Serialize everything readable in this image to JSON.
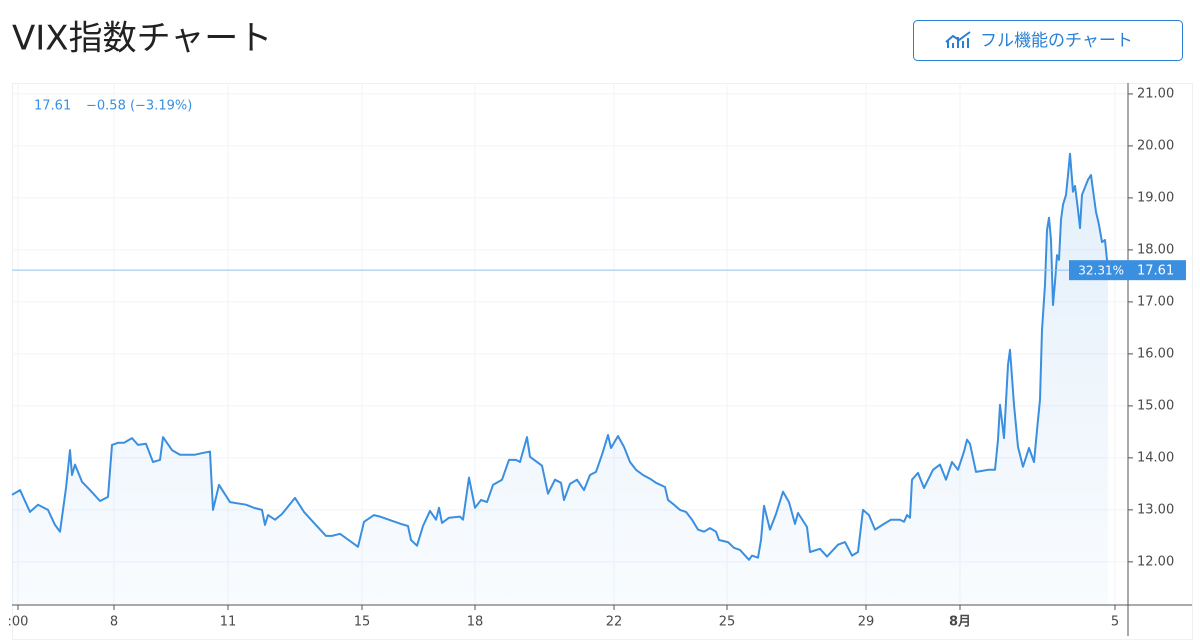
{
  "header": {
    "title": "VIX指数チャート",
    "button": "フル機能のチャート"
  },
  "chart_data": {
    "type": "line",
    "legend": {
      "change": "−0.58 (−3.19%)"
    },
    "price_tag_percent": "32.31%",
    "color": "#3b8fe0",
    "grid": true,
    "x": [
      0,
      8,
      18,
      26,
      36,
      43,
      48,
      54,
      58,
      60,
      63,
      70,
      78,
      88,
      96,
      100,
      106,
      112,
      120,
      126,
      134,
      141,
      148,
      151,
      160,
      168,
      183,
      192,
      198,
      201,
      207,
      218,
      234,
      242,
      250,
      253,
      256,
      263,
      270,
      283,
      292,
      302,
      314,
      320,
      328,
      338,
      346,
      352,
      362,
      368,
      380,
      389,
      396,
      399,
      405,
      411,
      418,
      424,
      427,
      430,
      437,
      448,
      451,
      457,
      463,
      469,
      475,
      481,
      490,
      497,
      504,
      508,
      515,
      518,
      530,
      536,
      543,
      549,
      552,
      558,
      565,
      572,
      578,
      584,
      590,
      596,
      599,
      606,
      612,
      618,
      624,
      631,
      638,
      644,
      653,
      656,
      662,
      668,
      674,
      680,
      686,
      692,
      698,
      704,
      707,
      716,
      722,
      728,
      737,
      740,
      746,
      749,
      752,
      758,
      764,
      771,
      777,
      783,
      786,
      795,
      798,
      808,
      815,
      826,
      833,
      840,
      846,
      851,
      857,
      863,
      872,
      879,
      888,
      892,
      895,
      898,
      900,
      906,
      912,
      921,
      928,
      934,
      940,
      946,
      952,
      955,
      958,
      964,
      970,
      976,
      983,
      986,
      988,
      992,
      996,
      998,
      1002,
      1006,
      1011,
      1017,
      1022,
      1026,
      1028,
      1030,
      1033,
      1035,
      1037,
      1039,
      1041,
      1043,
      1045,
      1047,
      1049,
      1051,
      1054,
      1056,
      1058,
      1061,
      1063,
      1066,
      1068,
      1070,
      1076,
      1079,
      1081,
      1084,
      1087,
      1090,
      1093,
      1096
    ],
    "values": [
      13.29,
      13.38,
      12.96,
      13.1,
      13.0,
      12.71,
      12.58,
      13.42,
      14.15,
      13.67,
      13.87,
      13.54,
      13.38,
      13.17,
      13.25,
      14.25,
      14.29,
      14.29,
      14.38,
      14.25,
      14.27,
      13.92,
      13.96,
      14.4,
      14.15,
      14.06,
      14.06,
      14.1,
      14.12,
      13.0,
      13.48,
      13.15,
      13.1,
      13.04,
      13.0,
      12.71,
      12.9,
      12.81,
      12.92,
      13.23,
      12.96,
      12.75,
      12.5,
      12.5,
      12.54,
      12.4,
      12.29,
      12.77,
      12.9,
      12.87,
      12.79,
      12.73,
      12.69,
      12.42,
      12.31,
      12.69,
      12.98,
      12.81,
      13.04,
      12.75,
      12.85,
      12.87,
      12.81,
      13.62,
      13.04,
      13.19,
      13.15,
      13.48,
      13.58,
      13.96,
      13.96,
      13.92,
      14.4,
      14.02,
      13.85,
      13.31,
      13.58,
      13.52,
      13.19,
      13.5,
      13.58,
      13.38,
      13.67,
      13.73,
      14.06,
      14.44,
      14.19,
      14.42,
      14.21,
      13.92,
      13.77,
      13.67,
      13.6,
      13.52,
      13.44,
      13.19,
      13.1,
      13.0,
      12.96,
      12.81,
      12.62,
      12.58,
      12.65,
      12.58,
      12.42,
      12.38,
      12.27,
      12.23,
      12.04,
      12.12,
      12.08,
      12.42,
      13.08,
      12.62,
      12.92,
      13.35,
      13.15,
      12.73,
      12.94,
      12.67,
      12.19,
      12.25,
      12.1,
      12.33,
      12.38,
      12.12,
      12.19,
      13.0,
      12.9,
      12.62,
      12.73,
      12.81,
      12.81,
      12.77,
      12.9,
      12.85,
      13.58,
      13.71,
      13.42,
      13.77,
      13.87,
      13.58,
      13.92,
      13.77,
      14.12,
      14.35,
      14.27,
      13.73,
      13.75,
      13.77,
      13.77,
      14.35,
      15.02,
      14.38,
      15.79,
      16.08,
      15.02,
      14.21,
      13.83,
      14.19,
      13.92,
      14.73,
      15.12,
      16.46,
      17.33,
      18.38,
      18.62,
      18.19,
      16.94,
      17.38,
      17.9,
      17.81,
      18.58,
      18.87,
      19.06,
      19.44,
      19.85,
      19.12,
      19.23,
      18.77,
      18.42,
      19.06,
      19.35,
      19.44,
      19.15,
      18.73,
      18.48,
      18.15,
      18.19,
      17.61
    ],
    "xlim": [
      0,
      1116
    ],
    "xticks": [
      {
        "value": 6,
        "label": ":00"
      },
      {
        "value": 102,
        "label": "8"
      },
      {
        "value": 216,
        "label": "11"
      },
      {
        "value": 350,
        "label": "15"
      },
      {
        "value": 463,
        "label": "18"
      },
      {
        "value": 602,
        "label": "22"
      },
      {
        "value": 715,
        "label": "25"
      },
      {
        "value": 854,
        "label": "29"
      },
      {
        "value": 948,
        "label": "8月"
      },
      {
        "value": 1103,
        "label": "5"
      }
    ],
    "ylim": [
      11.17,
      21.21
    ],
    "yticks": [
      {
        "value": 12,
        "label": "12.00"
      },
      {
        "value": 13,
        "label": "13.00"
      },
      {
        "value": 14,
        "label": "14.00"
      },
      {
        "value": 15,
        "label": "15.00"
      },
      {
        "value": 16,
        "label": "16.00"
      },
      {
        "value": 17,
        "label": "17.00"
      },
      {
        "value": 18,
        "label": "18.00"
      },
      {
        "value": 19,
        "label": "19.00"
      },
      {
        "value": 20,
        "label": "20.00"
      },
      {
        "value": 21,
        "label": "21.00"
      }
    ]
  }
}
